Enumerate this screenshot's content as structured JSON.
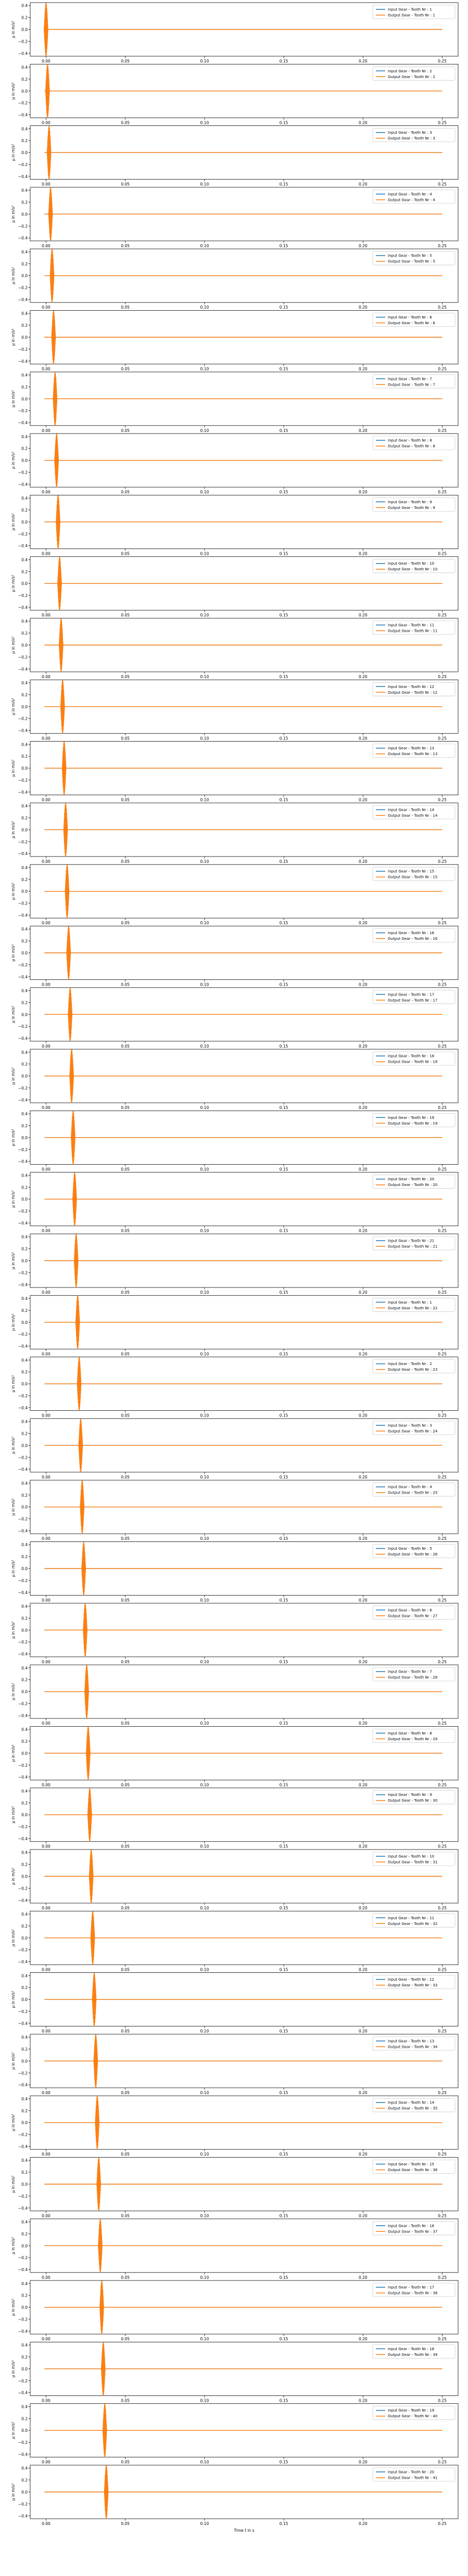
{
  "chart_data": {
    "type": "line",
    "layout": "stacked-subplots",
    "shared_x": true,
    "xlabel": "Time t in s",
    "ylabel": "μ in m/s²",
    "xlim": [
      -0.01,
      0.26
    ],
    "ylim": [
      -0.45,
      0.45
    ],
    "x_ticks": [
      0.0,
      0.05,
      0.1,
      0.15,
      0.2,
      0.25
    ],
    "x_tick_labels": [
      "0.00",
      "0.05",
      "0.10",
      "0.15",
      "0.20",
      "0.25"
    ],
    "y_ticks": [
      -0.4,
      -0.2,
      0.0,
      0.2,
      0.4
    ],
    "y_tick_labels": [
      "−0.4",
      "−0.2",
      "0.0",
      "0.2",
      "0.4"
    ],
    "legend_position": "top-right",
    "series_colors": {
      "input": "#1f77b4",
      "output": "#ff7f0e"
    },
    "series_name_templates": {
      "input": "Input Gear - Tooth Nr : {n}",
      "output": "Output Gear - Tooth Nr : {n}"
    },
    "input_teeth": [
      1,
      2,
      3,
      4,
      5,
      6,
      7,
      8,
      9,
      10,
      11,
      12,
      13,
      14,
      15,
      16,
      17,
      18,
      19,
      20,
      21,
      1,
      2,
      3,
      4,
      5,
      6,
      7,
      8,
      9,
      10,
      11,
      12,
      13,
      14,
      15,
      16,
      17,
      18,
      19,
      20
    ],
    "output_teeth": [
      1,
      2,
      3,
      4,
      5,
      6,
      7,
      8,
      9,
      10,
      11,
      12,
      13,
      14,
      15,
      16,
      17,
      18,
      19,
      20,
      21,
      22,
      23,
      24,
      25,
      26,
      27,
      28,
      29,
      30,
      31,
      32,
      33,
      34,
      35,
      36,
      37,
      38,
      39,
      40,
      41
    ],
    "burst_center_start": 0.0,
    "burst_center_step": 0.00095,
    "burst_amplitude": 0.45,
    "burst_halfwidth": 0.0012
  }
}
